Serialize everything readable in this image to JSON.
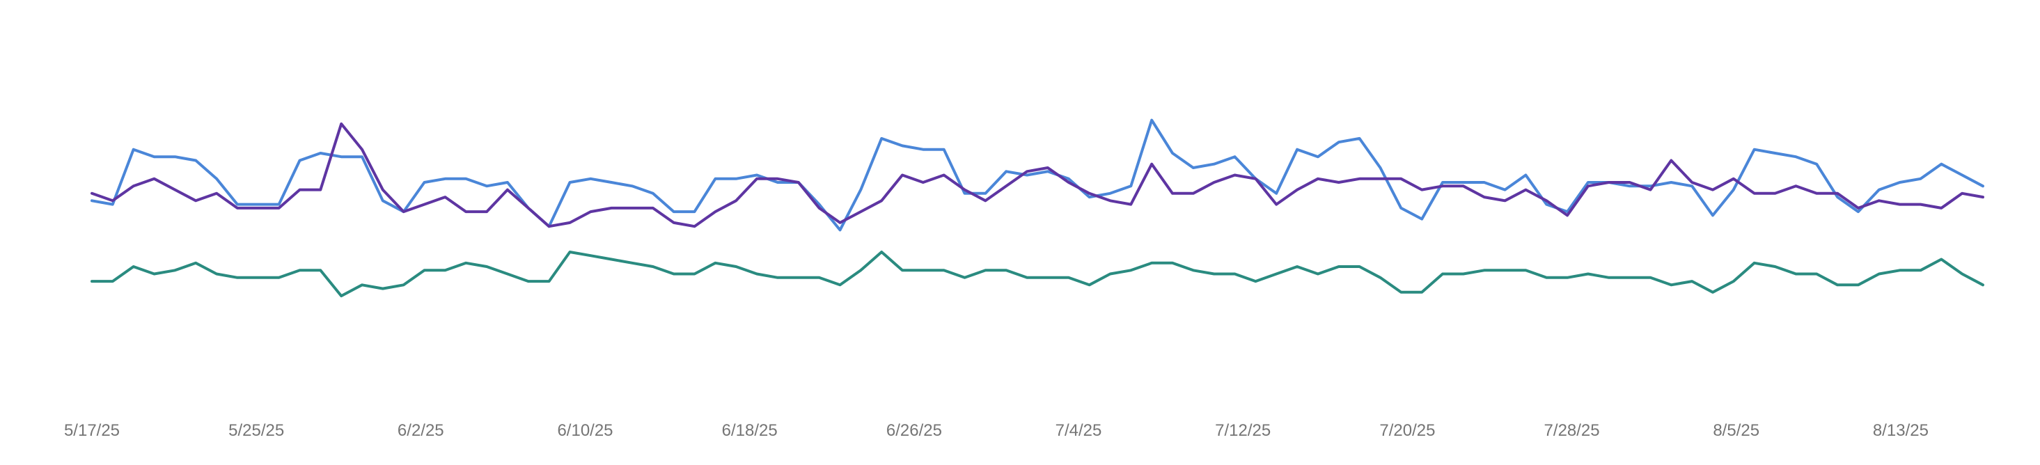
{
  "chart_data": {
    "type": "line",
    "title": "",
    "xlabel": "",
    "ylabel": "",
    "x_start": "5/17/25",
    "x_end": "8/17/25",
    "xtick_labels": [
      "5/17/25",
      "5/25/25",
      "6/2/25",
      "6/10/25",
      "6/18/25",
      "6/26/25",
      "7/4/25",
      "7/12/25",
      "7/20/25",
      "7/28/25",
      "8/5/25",
      "8/13/25"
    ],
    "ylim": [
      0,
      100
    ],
    "grid": false,
    "legend": "none",
    "series": [
      {
        "color": "#4a86d8",
        "values": [
          41,
          40,
          55,
          53,
          53,
          52,
          47,
          40,
          40,
          40,
          52,
          54,
          53,
          53,
          41,
          38,
          46,
          47,
          47,
          45,
          46,
          39,
          34,
          46,
          47,
          46,
          45,
          43,
          38,
          38,
          47,
          47,
          48,
          46,
          46,
          40,
          33,
          44,
          58,
          56,
          55,
          55,
          43,
          43,
          49,
          48,
          49,
          47,
          42,
          43,
          45,
          63,
          54,
          50,
          51,
          53,
          47,
          43,
          55,
          53,
          57,
          58,
          50,
          39,
          36,
          46,
          46,
          46,
          44,
          48,
          40,
          38,
          46,
          46,
          45,
          45,
          46,
          45,
          37,
          44,
          55,
          54,
          53,
          51,
          42,
          38,
          44,
          46,
          47,
          51,
          48,
          45
        ],
        "name": ""
      },
      {
        "color": "#5e35a2",
        "values": [
          43,
          41,
          45,
          47,
          44,
          41,
          43,
          39,
          39,
          39,
          44,
          44,
          62,
          55,
          44,
          38,
          40,
          42,
          38,
          38,
          44,
          39,
          34,
          35,
          38,
          39,
          39,
          39,
          35,
          34,
          38,
          41,
          47,
          47,
          46,
          39,
          35,
          38,
          41,
          48,
          46,
          48,
          44,
          41,
          45,
          49,
          50,
          46,
          43,
          41,
          40,
          51,
          43,
          43,
          46,
          48,
          47,
          40,
          44,
          47,
          46,
          47,
          47,
          47,
          44,
          45,
          45,
          42,
          41,
          44,
          41,
          37,
          45,
          46,
          46,
          44,
          52,
          46,
          44,
          47,
          43,
          43,
          45,
          43,
          43,
          39,
          41,
          40,
          40,
          39,
          43,
          42
        ],
        "name": ""
      },
      {
        "color": "#2a8b80",
        "values": [
          19,
          19,
          23,
          21,
          22,
          24,
          21,
          20,
          20,
          20,
          22,
          22,
          15,
          18,
          17,
          18,
          22,
          22,
          24,
          23,
          21,
          19,
          19,
          27,
          26,
          25,
          24,
          23,
          21,
          21,
          24,
          23,
          21,
          20,
          20,
          20,
          18,
          22,
          27,
          22,
          22,
          22,
          20,
          22,
          22,
          20,
          20,
          20,
          18,
          21,
          22,
          24,
          24,
          22,
          21,
          21,
          19,
          21,
          23,
          21,
          23,
          23,
          20,
          16,
          16,
          21,
          21,
          22,
          22,
          22,
          20,
          20,
          21,
          20,
          20,
          20,
          18,
          19,
          16,
          19,
          24,
          23,
          21,
          21,
          18,
          18,
          21,
          22,
          22,
          25,
          21,
          18
        ],
        "name": ""
      }
    ]
  }
}
